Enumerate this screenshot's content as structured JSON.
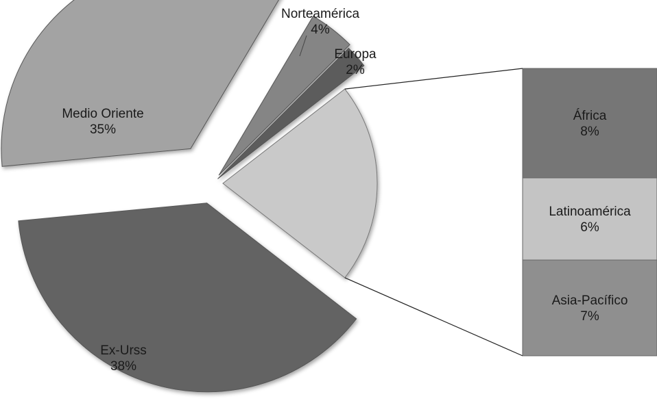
{
  "chart_data": {
    "type": "pie",
    "title": "",
    "variant": "bar-of-pie",
    "slices": [
      {
        "name": "Norteamérica",
        "value_label": "4%",
        "value": 4,
        "color": "#858585"
      },
      {
        "name": "Europa",
        "value_label": "2%",
        "value": 2,
        "color": "#5c5c5c"
      },
      {
        "name": "Medio Oriente",
        "value_label": "35%",
        "value": 35,
        "color": "#a3a3a3"
      },
      {
        "name": "Ex-Urss",
        "value_label": "38%",
        "value": 38,
        "color": "#646464"
      }
    ],
    "other_slice": {
      "total": 21,
      "color": "#c9c9c9"
    },
    "bar_breakdown": [
      {
        "name": "África",
        "value_label": "8%",
        "value": 8,
        "color": "#767676"
      },
      {
        "name": "Latinoamérica",
        "value_label": "6%",
        "value": 6,
        "color": "#c4c4c4"
      },
      {
        "name": "Asia-Pacífico",
        "value_label": "7%",
        "value": 7,
        "color": "#8f8f8f"
      }
    ],
    "legend": "none"
  }
}
